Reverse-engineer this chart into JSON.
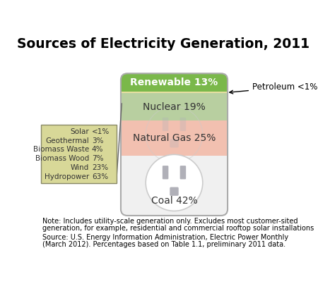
{
  "title": "Sources of Electricity Generation, 2011",
  "segments": [
    {
      "label": "Coal 42%",
      "pct": 42,
      "color": "#f0f0f0"
    },
    {
      "label": "Natural Gas 25%",
      "pct": 25,
      "color": "#f2c0b0"
    },
    {
      "label": "Nuclear 19%",
      "pct": 19,
      "color": "#b8cfa0"
    },
    {
      "label": "Petroleum <1%",
      "pct": 1,
      "color": "#e8e0a0"
    },
    {
      "label": "Renewable 13%",
      "pct": 13,
      "color": "#7ab84a"
    }
  ],
  "legend_items": [
    [
      "Solar",
      "<1%"
    ],
    [
      "Geothermal",
      "3%"
    ],
    [
      "Biomass Waste",
      "4%"
    ],
    [
      "Biomass Wood",
      "7%"
    ],
    [
      "Wind",
      "23%"
    ],
    [
      "Hydropower",
      "63%"
    ]
  ],
  "petroleum_label": "Petroleum <1%",
  "note_line1": "Note: Includes utility-scale generation only. Excludes most customer-sited",
  "note_line2": "generation, for example, residential and commercial rooftop solar installations",
  "source_line1": "Source: U.S. Energy Information Administration, ",
  "source_italic": "Electric Power Monthly",
  "source_line2": "(March 2012). Percentages based on Table 1.1, preliminary 2011 data.",
  "bg_color": "#ffffff",
  "legend_bg": "#d8d898",
  "outlet_face": "#f0f0f0",
  "outlet_slot": "#b0b0b8",
  "card_border": "#aaaaaa"
}
